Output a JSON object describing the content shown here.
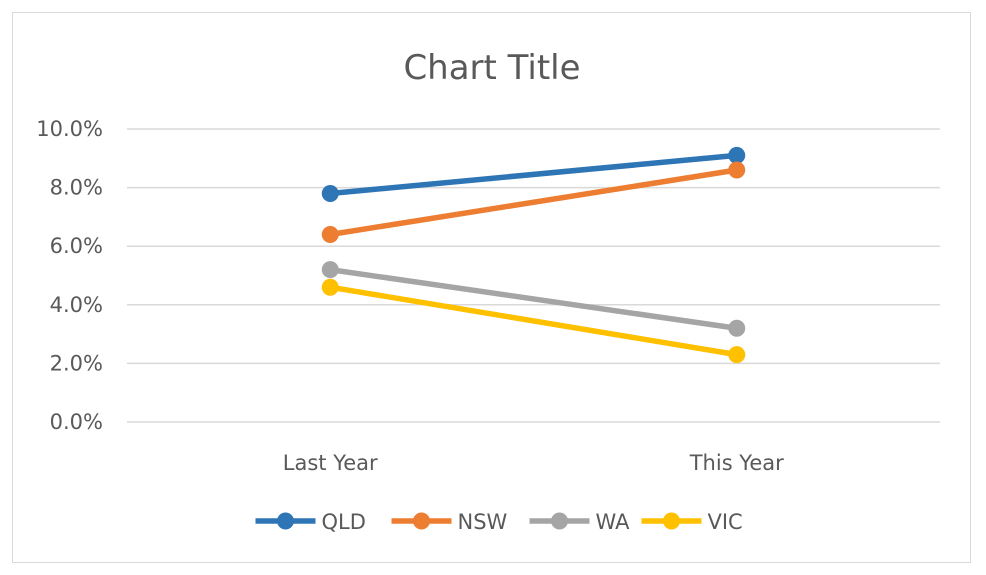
{
  "chart_data": {
    "type": "line",
    "title": "Chart Title",
    "categories": [
      "Last Year",
      "This Year"
    ],
    "ylim": [
      0,
      10
    ],
    "yticks": [
      0,
      2,
      4,
      6,
      8,
      10
    ],
    "ytick_labels": [
      "0.0%",
      "2.0%",
      "4.0%",
      "6.0%",
      "8.0%",
      "10.0%"
    ],
    "ytick_unit": "%",
    "grid": true,
    "legend_position": "bottom",
    "series": [
      {
        "name": "QLD",
        "values": [
          7.8,
          9.1
        ],
        "color": "#2E75B6"
      },
      {
        "name": "NSW",
        "values": [
          6.4,
          8.6
        ],
        "color": "#ED7D31"
      },
      {
        "name": "WA",
        "values": [
          5.2,
          3.2
        ],
        "color": "#A5A5A5"
      },
      {
        "name": "VIC",
        "values": [
          4.6,
          2.3
        ],
        "color": "#FFC000"
      }
    ],
    "colors": {
      "gridline": "#d9d9d9",
      "text": "#595959",
      "border": "#d9d9d9"
    }
  }
}
